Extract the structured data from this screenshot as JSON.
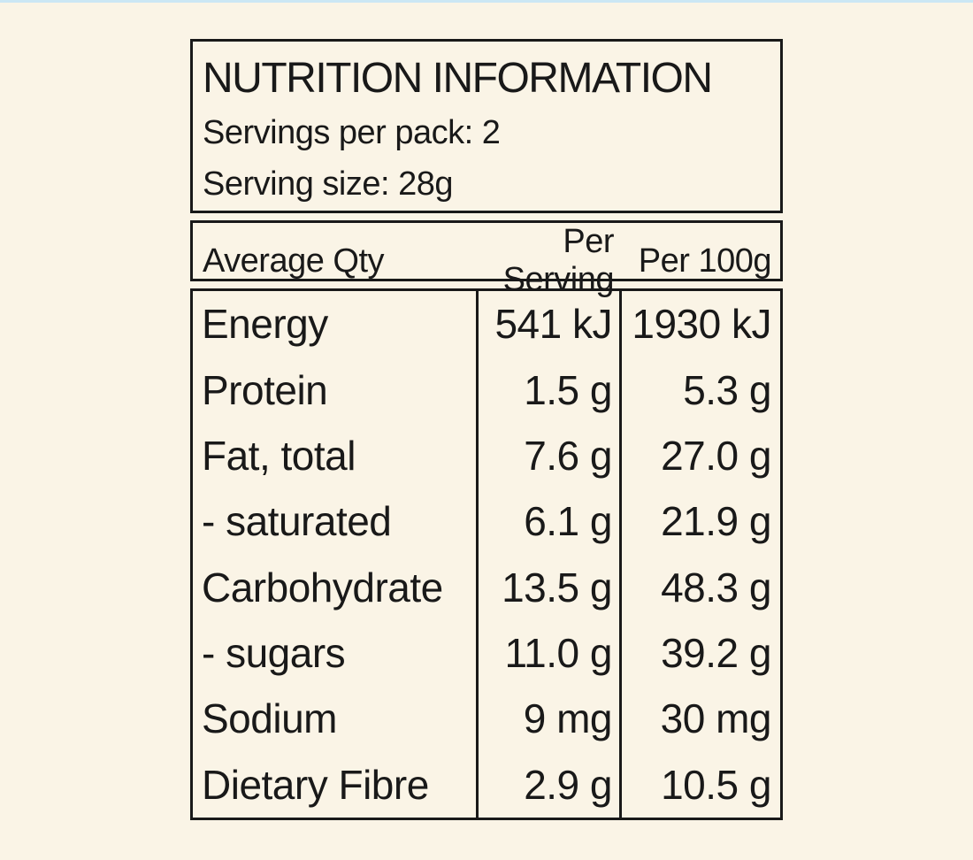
{
  "colors": {
    "bg": "#faf4e6",
    "ink": "#191919",
    "strip": "#cbe7f4"
  },
  "panel": {
    "title": "NUTRITION INFORMATION",
    "servings_per_pack": "Servings per pack: 2",
    "serving_size": "Serving size: 28g"
  },
  "table": {
    "columns": [
      "Average Qty",
      "Per Serving",
      "Per 100g"
    ],
    "rows": [
      {
        "label": "Energy",
        "per_serving": "541 kJ",
        "per_100g": "1930 kJ"
      },
      {
        "label": "Protein",
        "per_serving": "1.5 g",
        "per_100g": "5.3 g"
      },
      {
        "label": "Fat, total",
        "per_serving": "7.6 g",
        "per_100g": "27.0 g"
      },
      {
        "label": "- saturated",
        "per_serving": "6.1 g",
        "per_100g": "21.9 g"
      },
      {
        "label": "Carbohydrate",
        "per_serving": "13.5 g",
        "per_100g": "48.3 g"
      },
      {
        "label": "- sugars",
        "per_serving": "11.0 g",
        "per_100g": "39.2 g"
      },
      {
        "label": "Sodium",
        "per_serving": "9 mg",
        "per_100g": "30 mg"
      },
      {
        "label": "Dietary Fibre",
        "per_serving": "2.9 g",
        "per_100g": "10.5 g"
      }
    ]
  },
  "chart_data": {
    "type": "table",
    "title": "NUTRITION INFORMATION",
    "columns": [
      "Average Qty",
      "Per Serving",
      "Per 100g"
    ],
    "rows": [
      [
        "Energy",
        "541 kJ",
        "1930 kJ"
      ],
      [
        "Protein",
        "1.5 g",
        "5.3 g"
      ],
      [
        "Fat, total",
        "7.6 g",
        "27.0 g"
      ],
      [
        "- saturated",
        "6.1 g",
        "21.9 g"
      ],
      [
        "Carbohydrate",
        "13.5 g",
        "48.3 g"
      ],
      [
        "- sugars",
        "11.0 g",
        "39.2 g"
      ],
      [
        "Sodium",
        "9 mg",
        "30 mg"
      ],
      [
        "Dietary Fibre",
        "2.9 g",
        "10.5 g"
      ]
    ]
  }
}
